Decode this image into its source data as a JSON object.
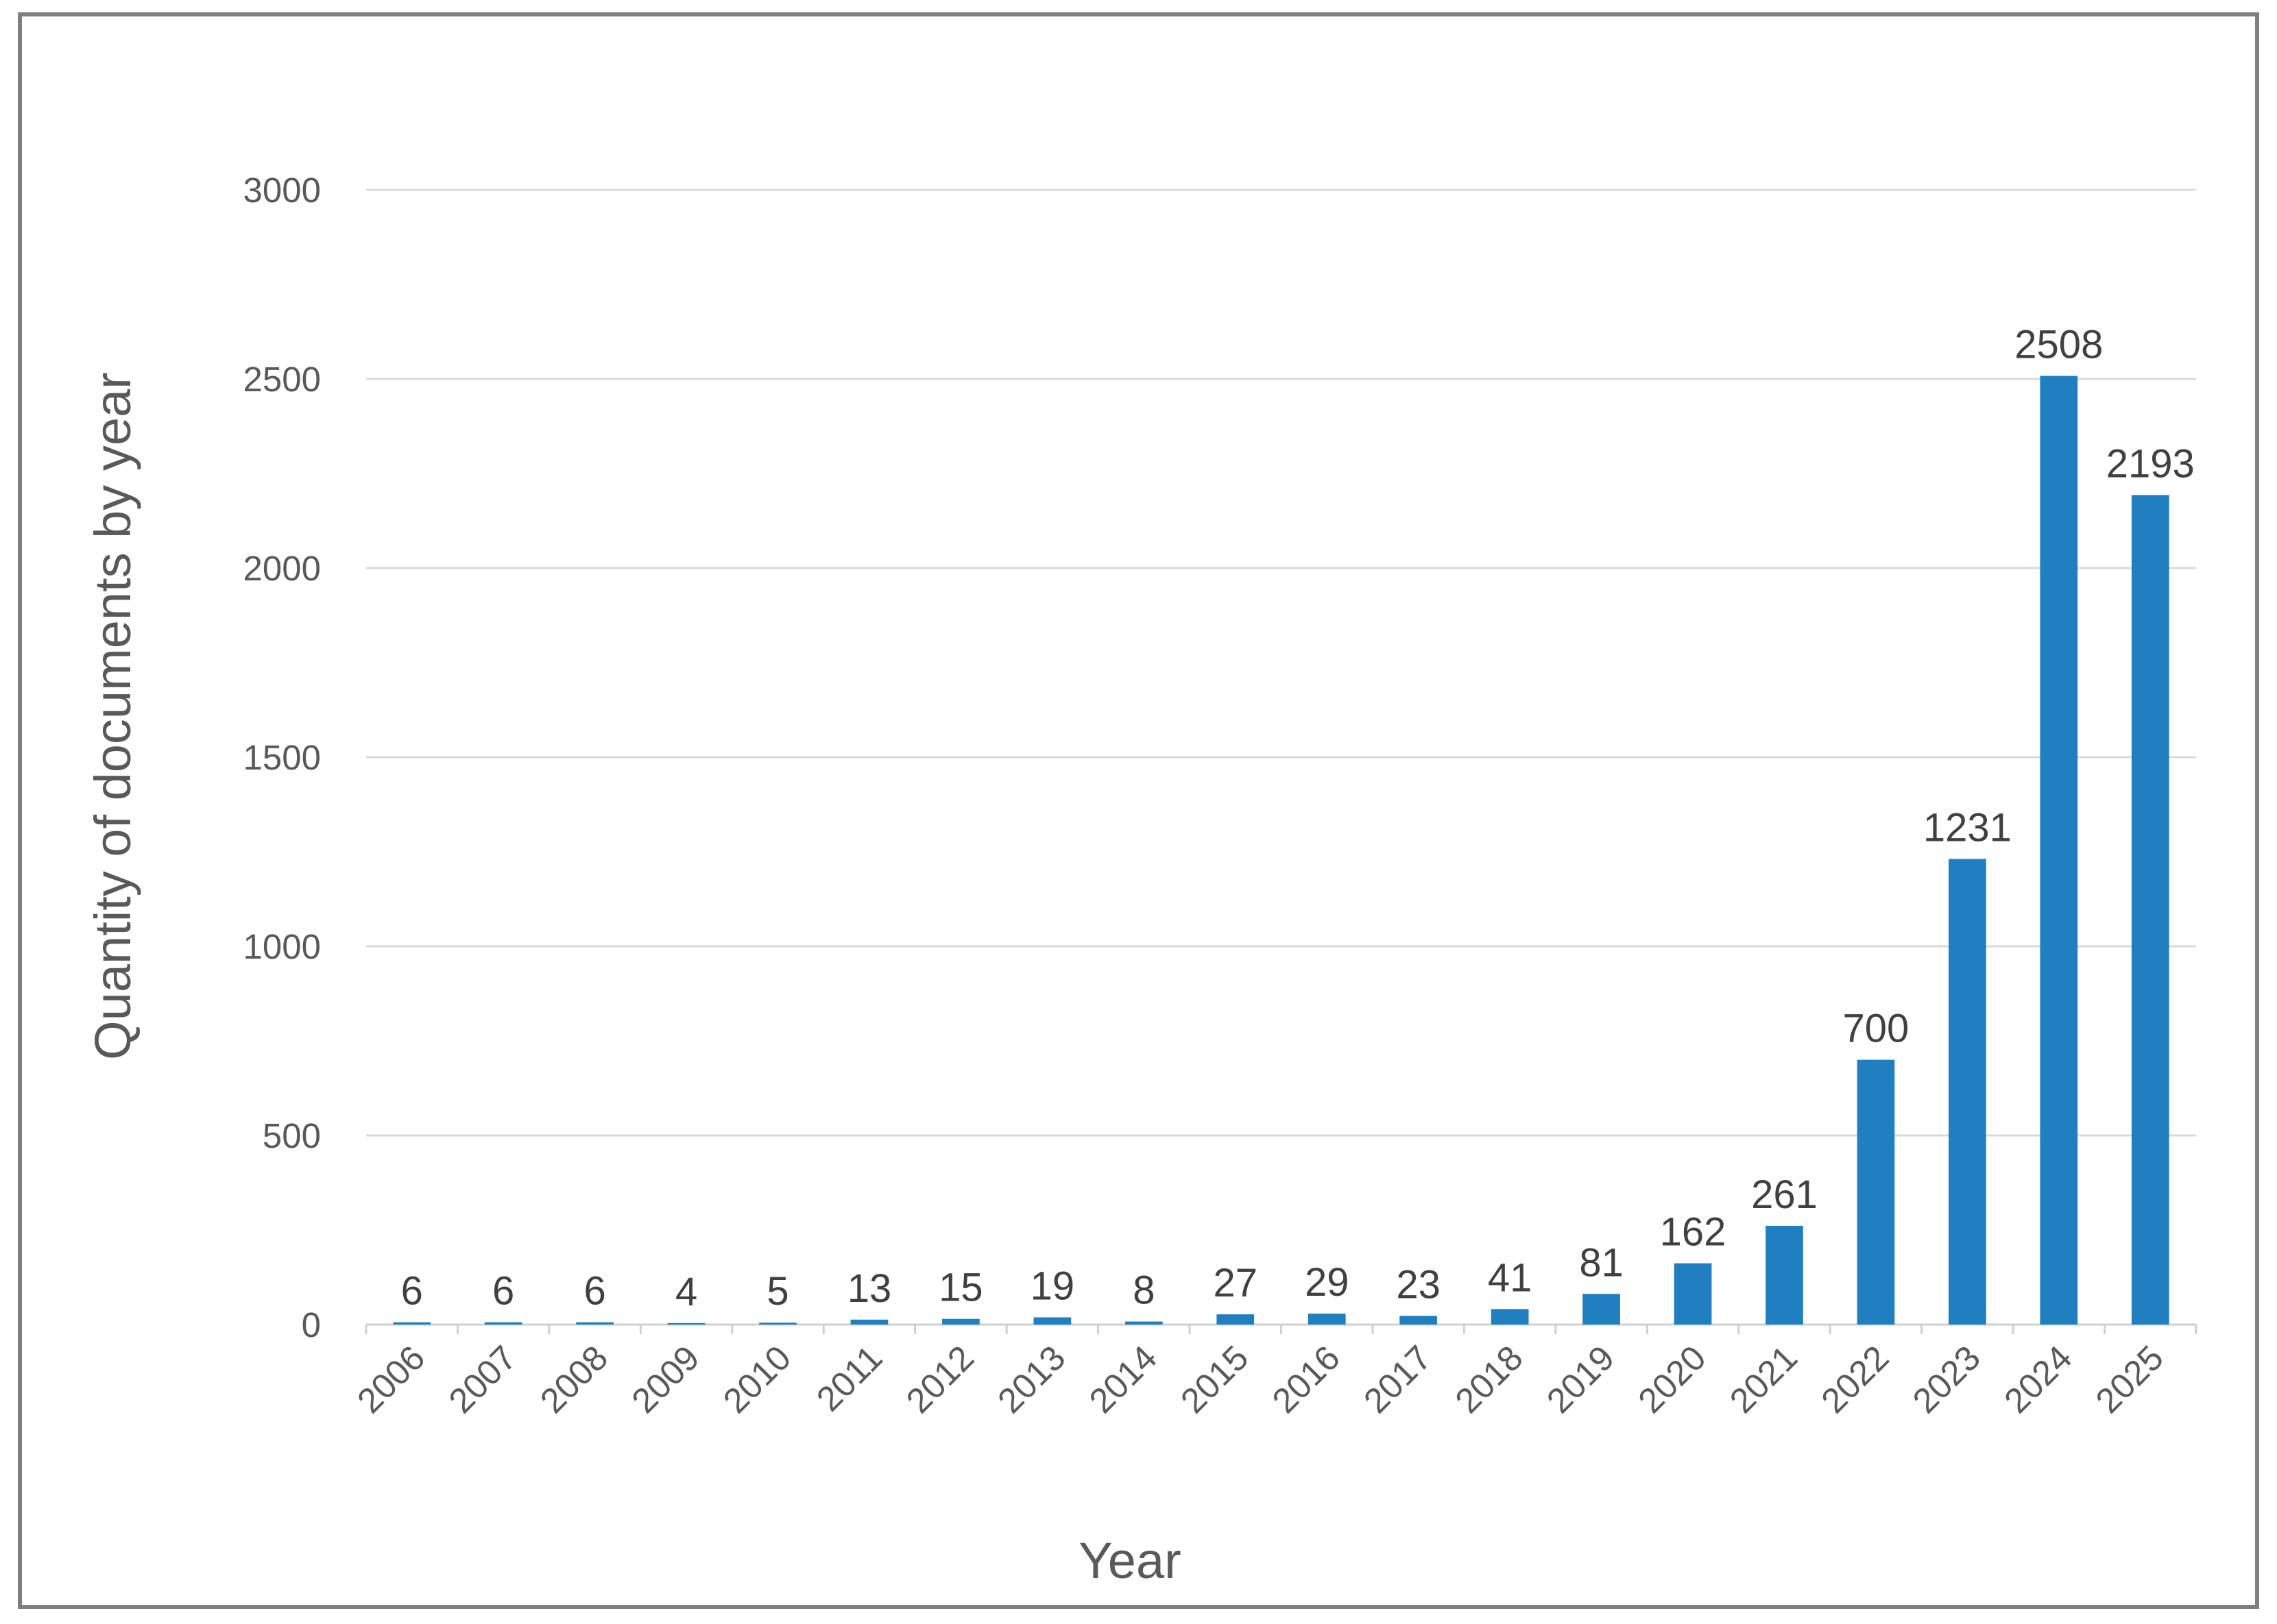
{
  "chart_data": {
    "type": "bar",
    "title": "",
    "xlabel": "Year",
    "ylabel": "Quantity of documents by year",
    "categories": [
      "2006",
      "2007",
      "2008",
      "2009",
      "2010",
      "2011",
      "2012",
      "2013",
      "2014",
      "2015",
      "2016",
      "2017",
      "2018",
      "2019",
      "2020",
      "2021",
      "2022",
      "2023",
      "2024",
      "2025"
    ],
    "values": [
      6,
      6,
      6,
      4,
      5,
      13,
      15,
      19,
      8,
      27,
      29,
      23,
      41,
      81,
      162,
      261,
      700,
      1231,
      2508,
      2193
    ],
    "data_labels": [
      "6",
      "6",
      "6",
      "4",
      "5",
      "13",
      "15",
      "19",
      "8",
      "27",
      "29",
      "23",
      "41",
      "81",
      "162",
      "261",
      "700",
      "1231",
      "2508",
      "2193"
    ],
    "ylim": [
      0,
      3000
    ],
    "y_ticks": [
      0,
      500,
      1000,
      1500,
      2000,
      2500,
      3000
    ],
    "y_tick_labels": [
      "0",
      "500",
      "1000",
      "1500",
      "2000",
      "2500",
      "3000"
    ],
    "grid": true,
    "legend": "none",
    "colors": {
      "bar": "#1f7fc0",
      "grid": "#d9d9d9",
      "frame": "#7f7f7f",
      "axis_text": "#595959",
      "label_text": "#404040"
    }
  }
}
